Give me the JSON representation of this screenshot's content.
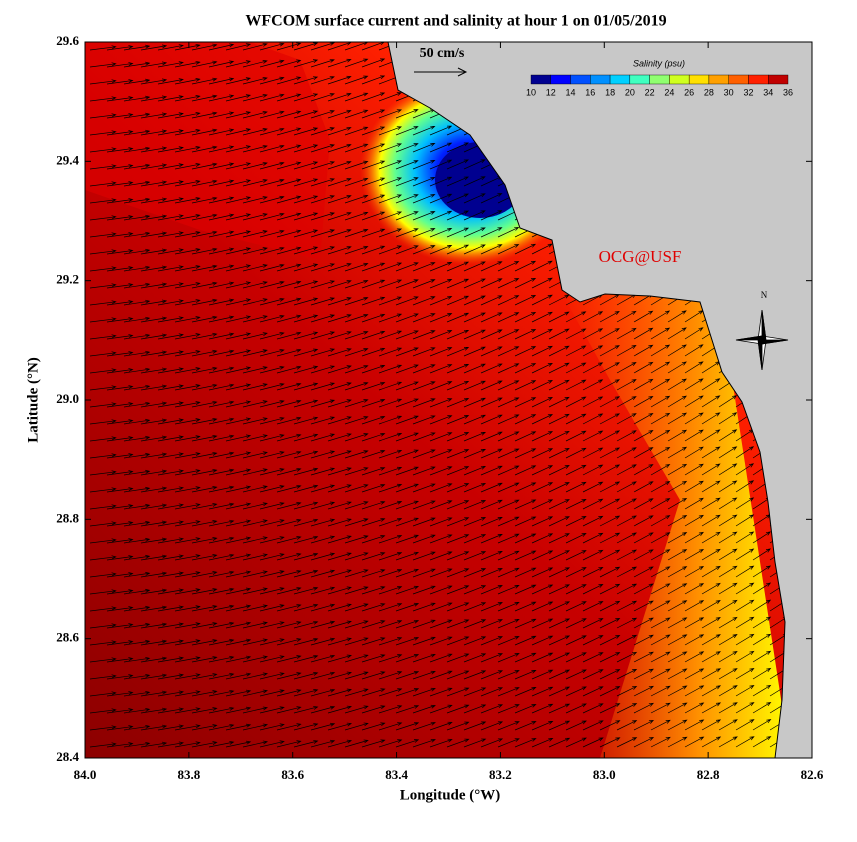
{
  "map": {
    "title": "WFCOM surface current and salinity at hour 1 on 01/05/2019",
    "x_label": "Longitude (°W)",
    "y_label": "Latitude (°N)",
    "xlim": [
      84.0,
      82.6
    ],
    "ylim": [
      28.4,
      29.6
    ],
    "x_ticks": [
      {
        "value": 84.0,
        "label": "84.0"
      },
      {
        "value": 83.8,
        "label": "83.8"
      },
      {
        "value": 83.6,
        "label": "83.6"
      },
      {
        "value": 83.4,
        "label": "83.4"
      },
      {
        "value": 83.2,
        "label": "83.2"
      },
      {
        "value": 83.0,
        "label": "83.0"
      },
      {
        "value": 82.8,
        "label": "82.8"
      },
      {
        "value": 82.6,
        "label": "82.6"
      }
    ],
    "y_ticks": [
      {
        "value": 28.4,
        "label": "28.4"
      },
      {
        "value": 28.6,
        "label": "28.6"
      },
      {
        "value": 28.8,
        "label": "28.8"
      },
      {
        "value": 29.0,
        "label": "29.0"
      },
      {
        "value": 29.2,
        "label": "29.2"
      },
      {
        "value": 29.4,
        "label": "29.4"
      },
      {
        "value": 29.6,
        "label": "29.6"
      }
    ],
    "scale_label": "50 cm/s",
    "credit": "OCG@USF",
    "compass_label": "N",
    "colorbar": {
      "title": "Salinity (psu)",
      "ticks": [
        10,
        12,
        14,
        16,
        18,
        20,
        22,
        24,
        26,
        28,
        30,
        32,
        34,
        36
      ]
    }
  }
}
